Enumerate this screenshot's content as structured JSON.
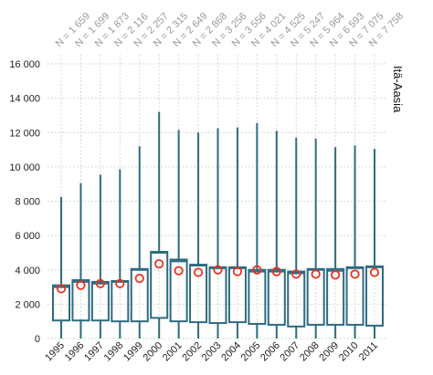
{
  "chart_data": {
    "type": "boxplot",
    "panel_label": "Itä-Aasia",
    "categories": [
      "1995",
      "1996",
      "1997",
      "1998",
      "1999",
      "2000",
      "2001",
      "2002",
      "2003",
      "2004",
      "2005",
      "2006",
      "2007",
      "2008",
      "2009",
      "2010",
      "2011"
    ],
    "n_labels": [
      "N = 1 659",
      "N = 1 699",
      "N = 1 873",
      "N = 2 116",
      "N = 2 257",
      "N = 2 315",
      "N = 2 649",
      "N = 2 868",
      "N = 3 256",
      "N = 3 556",
      "N = 4 021",
      "N = 4 525",
      "N = 5 247",
      "N = 5 964",
      "N = 6 593",
      "N = 7 075",
      "N = 7 758"
    ],
    "y_ticks": [
      0,
      2000,
      4000,
      6000,
      8000,
      10000,
      12000,
      14000,
      16000
    ],
    "y_tick_labels": [
      "0",
      "2 000",
      "4 000",
      "6 000",
      "8 000",
      "10 000",
      "12 000",
      "14 000",
      "16 000"
    ],
    "ylim": [
      0,
      16000
    ],
    "grid": true,
    "colors": {
      "box": "#2e6b80",
      "mean_marker": "#e8321e",
      "grid": "#d9d9d9"
    },
    "whisker_low": [
      0,
      0,
      0,
      0,
      0,
      0,
      0,
      0,
      0,
      0,
      0,
      0,
      0,
      0,
      0,
      0,
      0
    ],
    "q1": [
      1050,
      1050,
      1050,
      1000,
      1000,
      1200,
      1000,
      950,
      900,
      950,
      850,
      800,
      700,
      800,
      800,
      800,
      750
    ],
    "median": [
      3000,
      3300,
      3200,
      3300,
      4000,
      5000,
      4500,
      4250,
      4100,
      4100,
      3900,
      3900,
      3800,
      4000,
      3950,
      4100,
      4150
    ],
    "q3": [
      3100,
      3400,
      3300,
      3350,
      4050,
      5050,
      4600,
      4300,
      4150,
      4150,
      4000,
      4000,
      3900,
      4050,
      4050,
      4150,
      4200
    ],
    "whisker_high": [
      8250,
      9050,
      9550,
      9850,
      11200,
      13200,
      12150,
      12000,
      12250,
      12300,
      12550,
      12100,
      11700,
      11650,
      11150,
      11250,
      11050
    ],
    "mean": [
      2900,
      3100,
      3200,
      3200,
      3500,
      4350,
      3950,
      3850,
      4000,
      3900,
      4000,
      3900,
      3750,
      3750,
      3700,
      3750,
      3850
    ]
  }
}
